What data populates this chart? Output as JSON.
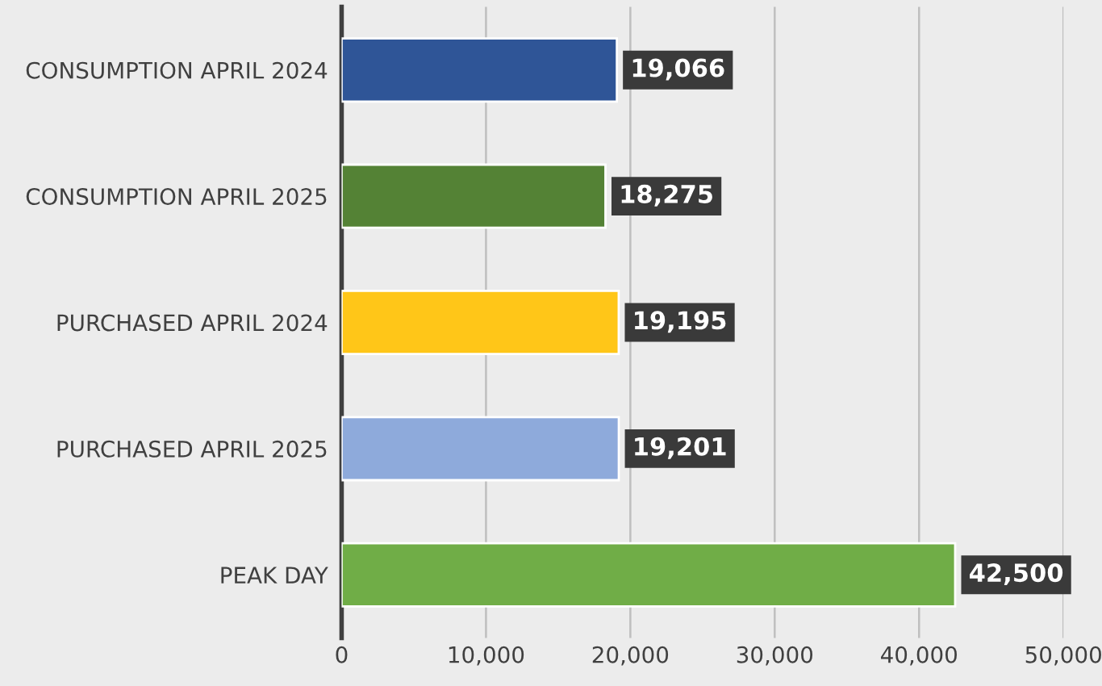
{
  "chart_data": {
    "type": "bar",
    "orientation": "horizontal",
    "categories": [
      "CONSUMPTION APRIL 2024",
      "CONSUMPTION APRIL 2025",
      "PURCHASED APRIL 2024",
      "PURCHASED APRIL 2025",
      "PEAK DAY"
    ],
    "values": [
      19066,
      18275,
      19195,
      19201,
      42500
    ],
    "colors": [
      "#2f5597",
      "#548235",
      "#ffc618",
      "#8eaadb",
      "#70ad47"
    ],
    "value_labels": [
      "19,066",
      "18,275",
      "19,195",
      "19,201",
      "42,500"
    ],
    "xlim": [
      0,
      50000
    ],
    "xticks": [
      0,
      {
        "value": 10000,
        "label": "10,000"
      },
      {
        "value": 20000,
        "label": "20,000"
      },
      {
        "value": 30000,
        "label": "30,000"
      },
      {
        "value": 40000,
        "label": "40,000"
      },
      {
        "value": 50000,
        "label": "50,000"
      }
    ],
    "grid": "x"
  }
}
